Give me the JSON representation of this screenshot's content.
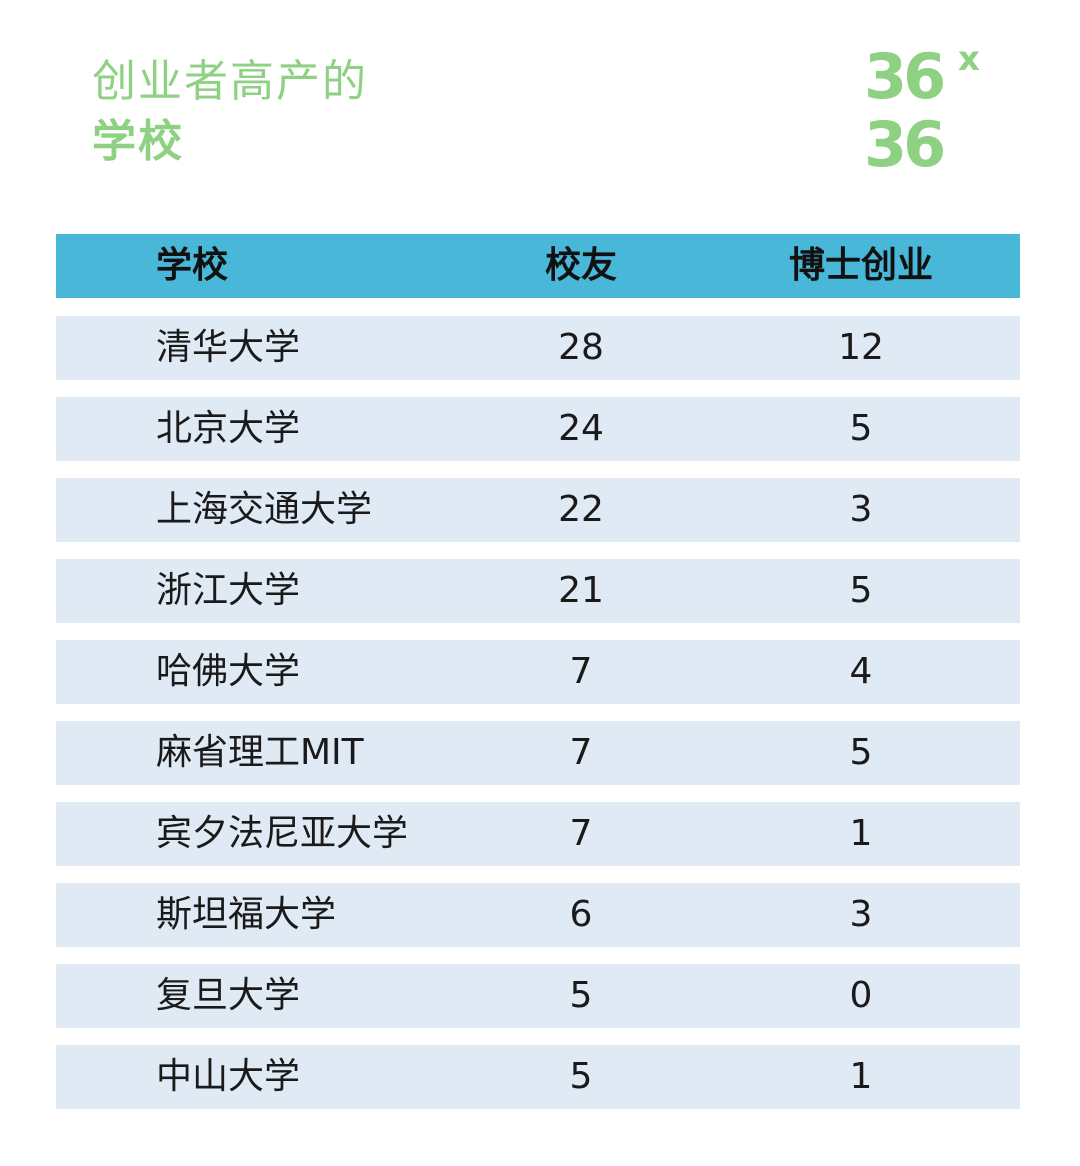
{
  "title": {
    "line1": "创业者高产的",
    "line2": "学校"
  },
  "logo": {
    "top": "36",
    "mark": "x",
    "bottom": "36",
    "color": "#8ed183"
  },
  "colors": {
    "header_bg": "#49b7d8",
    "row_bg": "#dfeaf4",
    "title": "#8ed183"
  },
  "chart_data": {
    "type": "table",
    "columns": [
      "学校",
      "校友",
      "博士创业"
    ],
    "rows": [
      [
        "清华大学",
        "28",
        "12"
      ],
      [
        "北京大学",
        "24",
        "5"
      ],
      [
        "上海交通大学",
        "22",
        "3"
      ],
      [
        "浙江大学",
        "21",
        "5"
      ],
      [
        "哈佛大学",
        "7",
        "4"
      ],
      [
        "麻省理工MIT",
        "7",
        "5"
      ],
      [
        "宾夕法尼亚大学",
        "7",
        "1"
      ],
      [
        "斯坦福大学",
        "6",
        "3"
      ],
      [
        "复旦大学",
        "5",
        "0"
      ],
      [
        "中山大学",
        "5",
        "1"
      ]
    ]
  }
}
